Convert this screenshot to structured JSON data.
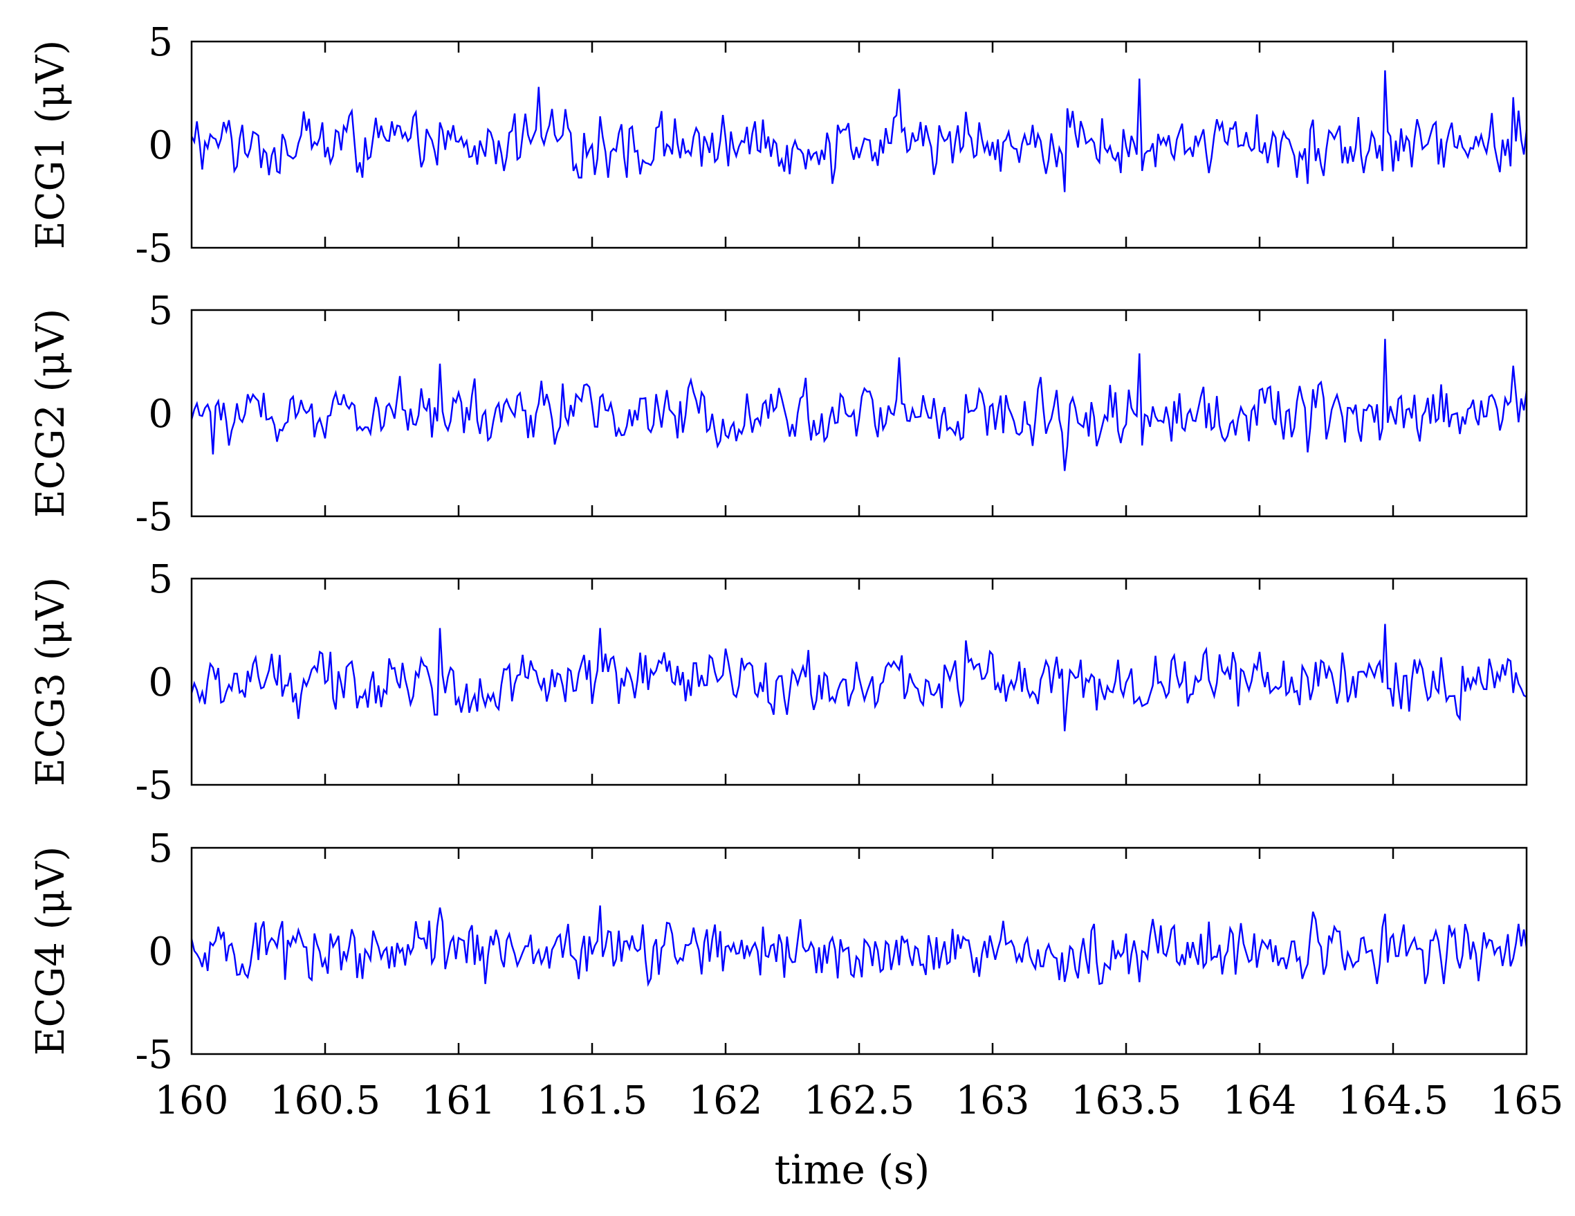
{
  "chart_data": {
    "type": "line",
    "line_color": "#0000ff",
    "axis_color": "#000000",
    "background": "#ffffff",
    "xlabel": "time (s)",
    "xlim": [
      160,
      165
    ],
    "x_ticks": [
      160,
      160.5,
      161,
      161.5,
      162,
      162.5,
      163,
      163.5,
      164,
      164.5,
      165
    ],
    "x_tick_labels": [
      "160",
      "160.5",
      "161",
      "161.5",
      "162",
      "162.5",
      "163",
      "163.5",
      "164",
      "164.5",
      "165"
    ],
    "grid": false,
    "sample_rate_hz": 100,
    "panels": [
      {
        "ylabel": "ECG1 (μV)",
        "ylim": [
          -5,
          5
        ],
        "y_ticks": [
          -5,
          0,
          5
        ],
        "y_tick_labels": [
          "-5",
          "0",
          "5"
        ],
        "peaks": [
          [
            161.3,
            2.8
          ],
          [
            163.55,
            3.2
          ],
          [
            164.47,
            3.6
          ],
          [
            162.65,
            2.7
          ],
          [
            164.95,
            2.3
          ]
        ],
        "troughs": [
          [
            163.27,
            -2.3
          ],
          [
            162.4,
            -1.9
          ],
          [
            164.18,
            -1.9
          ]
        ]
      },
      {
        "ylabel": "ECG2 (μV)",
        "ylim": [
          -5,
          5
        ],
        "y_ticks": [
          -5,
          0,
          5
        ],
        "y_tick_labels": [
          "-5",
          "0",
          "5"
        ],
        "peaks": [
          [
            160.93,
            2.4
          ],
          [
            162.65,
            2.7
          ],
          [
            163.55,
            2.9
          ],
          [
            164.47,
            3.6
          ],
          [
            164.95,
            2.3
          ]
        ],
        "troughs": [
          [
            163.27,
            -2.8
          ],
          [
            164.18,
            -1.9
          ],
          [
            160.08,
            -2.0
          ]
        ]
      },
      {
        "ylabel": "ECG3 (μV)",
        "ylim": [
          -5,
          5
        ],
        "y_ticks": [
          -5,
          0,
          5
        ],
        "y_tick_labels": [
          "-5",
          "0",
          "5"
        ],
        "peaks": [
          [
            160.93,
            2.6
          ],
          [
            161.53,
            2.6
          ],
          [
            164.47,
            2.8
          ],
          [
            162.9,
            2.0
          ]
        ],
        "troughs": [
          [
            163.27,
            -2.4
          ],
          [
            160.4,
            -1.8
          ],
          [
            164.75,
            -1.8
          ]
        ]
      },
      {
        "ylabel": "ECG4 (μV)",
        "ylim": [
          -5,
          5
        ],
        "y_ticks": [
          -5,
          0,
          5
        ],
        "y_tick_labels": [
          "-5",
          "0",
          "5"
        ],
        "peaks": [
          [
            160.93,
            2.1
          ],
          [
            161.53,
            2.2
          ],
          [
            164.2,
            1.9
          ],
          [
            164.47,
            1.8
          ]
        ],
        "troughs": [
          [
            161.1,
            -1.6
          ],
          [
            163.27,
            -1.5
          ],
          [
            160.35,
            -1.4
          ]
        ]
      }
    ]
  }
}
